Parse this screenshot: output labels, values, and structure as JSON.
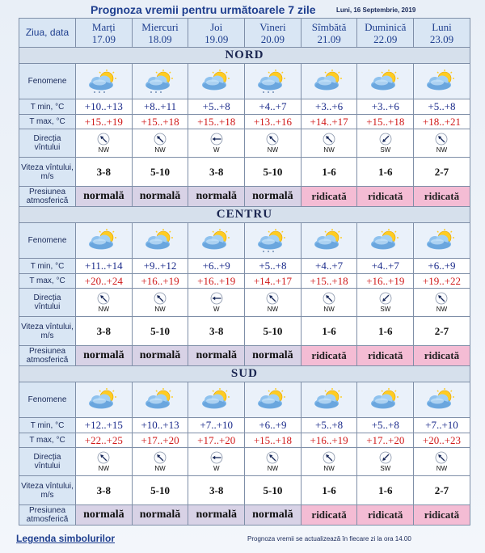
{
  "header": {
    "title": "Prognoza vremii pentru următoarele 7 zile",
    "date": "Luni, 16 Septembrie, 2019"
  },
  "table": {
    "corner_label": "Ziua, data",
    "days": [
      {
        "name": "Marți",
        "date": "17.09"
      },
      {
        "name": "Miercuri",
        "date": "18.09"
      },
      {
        "name": "Joi",
        "date": "19.09"
      },
      {
        "name": "Vineri",
        "date": "20.09"
      },
      {
        "name": "Sîmbătă",
        "date": "21.09"
      },
      {
        "name": "Duminică",
        "date": "22.09"
      },
      {
        "name": "Luni",
        "date": "23.09"
      }
    ],
    "row_labels": {
      "phenomena": "Fenomene",
      "tmin": "T min, °C",
      "tmax": "T max, °C",
      "wind_dir": "Direcția vîntului",
      "wind_speed": "Viteza vîntului, m/s",
      "pressure": "Presiunea atmosferică"
    }
  },
  "regions": [
    {
      "name": "NORD",
      "icons": [
        "cloud-sun-rain-icon",
        "cloud-sun-rain-icon",
        "cloud-sun-icon",
        "cloud-sun-rain-icon",
        "cloud-sun-icon",
        "cloud-sun-icon",
        "cloud-sun-icon"
      ],
      "tmin": [
        "+10..+13",
        "+8..+11",
        "+5..+8",
        "+4..+7",
        "+3..+6",
        "+3..+6",
        "+5..+8"
      ],
      "tmax": [
        "+15..+19",
        "+15..+18",
        "+15..+18",
        "+13..+16",
        "+14..+17",
        "+15..+18",
        "+18..+21"
      ],
      "wind_dir": [
        "NW",
        "NW",
        "W",
        "NW",
        "NW",
        "SW",
        "NW"
      ],
      "wind_speed": [
        "3-8",
        "5-10",
        "3-8",
        "5-10",
        "1-6",
        "1-6",
        "2-7"
      ],
      "pressure": [
        "normală",
        "normală",
        "normală",
        "normală",
        "ridicată",
        "ridicată",
        "ridicată"
      ]
    },
    {
      "name": "CENTRU",
      "icons": [
        "cloud-sun-icon",
        "cloud-sun-icon",
        "cloud-sun-icon",
        "cloud-sun-rain-icon",
        "cloud-sun-icon",
        "cloud-sun-icon",
        "cloud-sun-icon"
      ],
      "tmin": [
        "+11..+14",
        "+9..+12",
        "+6..+9",
        "+5..+8",
        "+4..+7",
        "+4..+7",
        "+6..+9"
      ],
      "tmax": [
        "+20..+24",
        "+16..+19",
        "+16..+19",
        "+14..+17",
        "+15..+18",
        "+16..+19",
        "+19..+22"
      ],
      "wind_dir": [
        "NW",
        "NW",
        "W",
        "NW",
        "NW",
        "SW",
        "NW"
      ],
      "wind_speed": [
        "3-8",
        "5-10",
        "3-8",
        "5-10",
        "1-6",
        "1-6",
        "2-7"
      ],
      "pressure": [
        "normală",
        "normală",
        "normală",
        "normală",
        "ridicată",
        "ridicată",
        "ridicată"
      ]
    },
    {
      "name": "SUD",
      "icons": [
        "cloud-sun-icon",
        "cloud-sun-icon",
        "cloud-sun-icon",
        "cloud-sun-icon",
        "cloud-sun-icon",
        "cloud-sun-icon",
        "cloud-sun-icon"
      ],
      "tmin": [
        "+12..+15",
        "+10..+13",
        "+7..+10",
        "+6..+9",
        "+5..+8",
        "+5..+8",
        "+7..+10"
      ],
      "tmax": [
        "+22..+25",
        "+17..+20",
        "+17..+20",
        "+15..+18",
        "+16..+19",
        "+17..+20",
        "+20..+23"
      ],
      "wind_dir": [
        "NW",
        "NW",
        "W",
        "NW",
        "NW",
        "SW",
        "NW"
      ],
      "wind_speed": [
        "3-8",
        "5-10",
        "3-8",
        "5-10",
        "1-6",
        "1-6",
        "2-7"
      ],
      "pressure": [
        "normală",
        "normală",
        "normală",
        "normală",
        "ridicată",
        "ridicată",
        "ridicată"
      ]
    }
  ],
  "footer": {
    "legend_link": "Legenda simbolurilor",
    "note": "Prognoza vremii se actualizează în fiecare zi la ora 14.00"
  },
  "colors": {
    "header_bg": "#d9e6f4",
    "pressure_normal_bg": "#d8d2e6",
    "pressure_high_bg": "#f4bcd4",
    "tmin_text": "#1a2a8a",
    "tmax_text": "#d01818",
    "title_text": "#1f3f8f"
  }
}
